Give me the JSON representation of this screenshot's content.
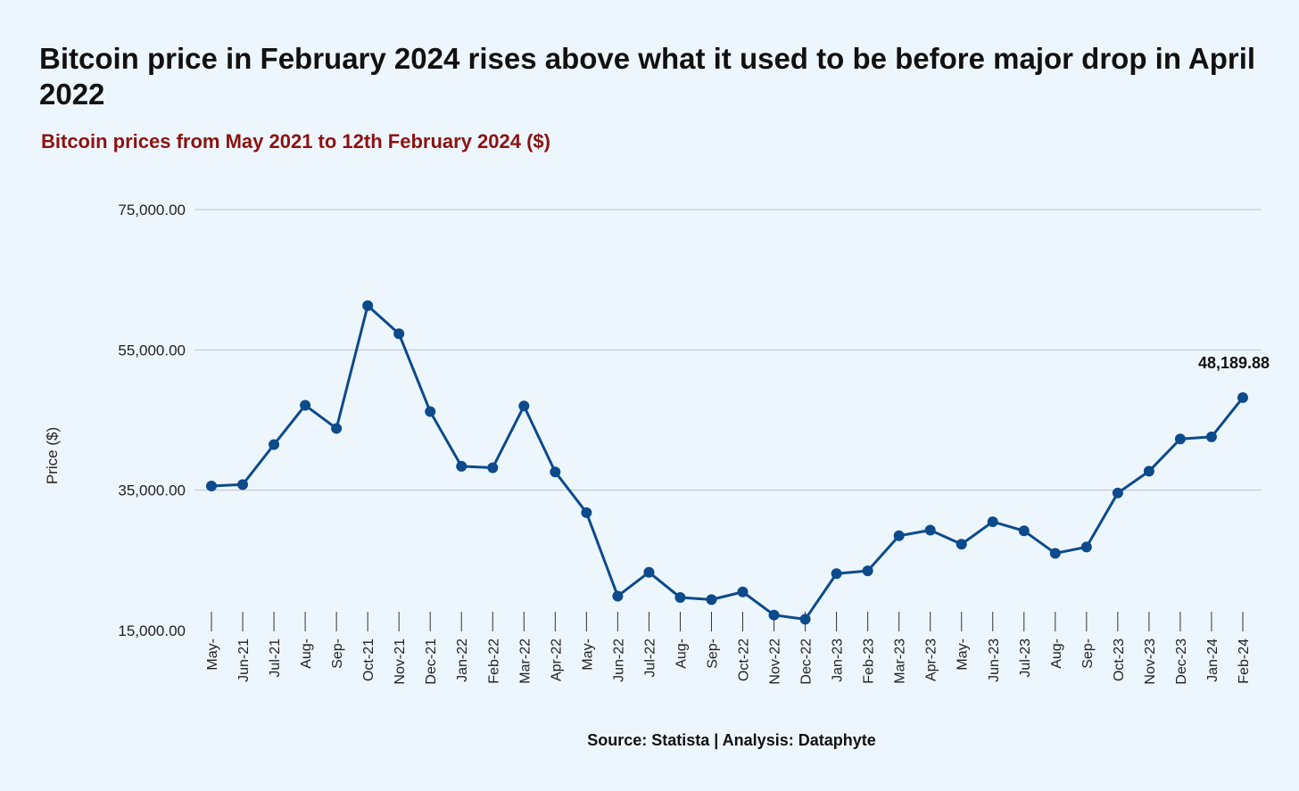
{
  "title": "Bitcoin price in February 2024 rises above what it used to be before major drop in April 2022",
  "subtitle": "Bitcoin prices from May 2021 to 12th February 2024 ($)",
  "source": "Source: Statista | Analysis: Dataphyte",
  "colors": {
    "line": "#0d4a8c",
    "subtitle": "#8b1212",
    "background": "#eef6fd",
    "gridline": "#b9c2cc"
  },
  "chart_data": {
    "type": "line",
    "title": "Bitcoin price in February 2024 rises above what it used to be before major drop in April 2022",
    "subtitle": "Bitcoin prices from May 2021 to 12th February 2024 ($)",
    "xlabel": "",
    "ylabel": "Price ($)",
    "ylim": [
      15000,
      75000
    ],
    "yticks": [
      "15,000.00",
      "35,000.00",
      "55,000.00",
      "75,000.00"
    ],
    "ytick_values": [
      15000,
      35000,
      55000,
      75000
    ],
    "grid": true,
    "legend": "none",
    "categories": [
      "May-",
      "Jun-21",
      "Jul-21",
      "Aug-",
      "Sep-",
      "Oct-21",
      "Nov-21",
      "Dec-21",
      "Jan-22",
      "Feb-22",
      "Mar-22",
      "Apr-22",
      "May-",
      "Jun-22",
      "Jul-22",
      "Aug-",
      "Sep-",
      "Oct-22",
      "Nov-22",
      "Dec-22",
      "Jan-23",
      "Feb-23",
      "Mar-23",
      "Apr-23",
      "May-",
      "Jun-23",
      "Jul-23",
      "Aug-",
      "Sep-",
      "Oct-23",
      "Nov-23",
      "Dec-23",
      "Jan-24",
      "Feb-24"
    ],
    "series": [
      {
        "values": [
          35600,
          35800,
          41500,
          47100,
          43800,
          61300,
          57300,
          46200,
          38400,
          38200,
          47000,
          37600,
          31800,
          19900,
          23300,
          19700,
          19400,
          20500,
          17200,
          16600,
          23100,
          23500,
          28500,
          29300,
          27300,
          30500,
          29200,
          26000,
          26900,
          34600,
          37700,
          42300,
          42600,
          48189.88
        ]
      }
    ],
    "last_point_label": "48,189.88"
  }
}
